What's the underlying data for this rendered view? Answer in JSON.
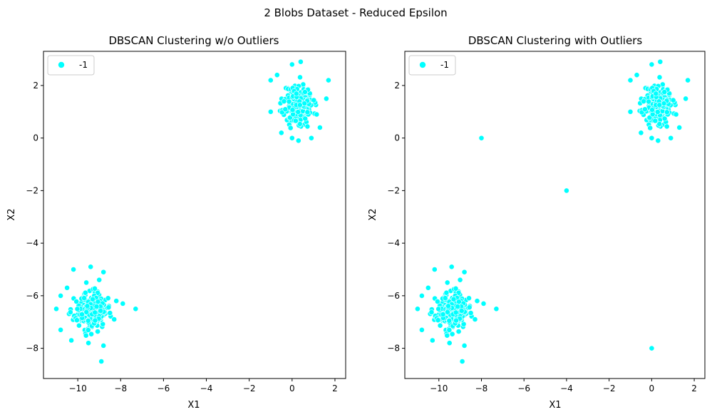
{
  "figure": {
    "suptitle": "2 Blobs Dataset - Reduced Epsilon"
  },
  "chart_data": [
    {
      "type": "scatter",
      "title": "DBSCAN Clustering w/o Outliers",
      "xlabel": "X1",
      "ylabel": "X2",
      "xlim": [
        -11.6,
        2.5
      ],
      "ylim": [
        -9.15,
        3.3
      ],
      "xticks": [
        -10,
        -8,
        -6,
        -4,
        -2,
        0,
        2
      ],
      "yticks": [
        2,
        0,
        -2,
        -4,
        -6,
        -8
      ],
      "xtick_labels": [
        "−10",
        "−8",
        "−6",
        "−4",
        "−2",
        "0",
        "2"
      ],
      "ytick_labels": [
        "2",
        "0",
        "−2",
        "−4",
        "−6",
        "−8"
      ],
      "grid": false,
      "legend": {
        "placement": "top-left",
        "entries": [
          {
            "label": "-1",
            "color": "#00ffff"
          }
        ]
      },
      "series": [
        {
          "name": "-1",
          "color": "#00ffff",
          "clusters": [
            {
              "center": [
                0.3,
                1.3
              ],
              "spread": [
                0.55,
                0.6
              ],
              "count": 260,
              "seed": 11
            },
            {
              "center": [
                -9.4,
                -6.6
              ],
              "spread": [
                0.6,
                0.55
              ],
              "count": 230,
              "seed": 23
            }
          ],
          "points": [
            [
              0.4,
              2.9
            ],
            [
              0.0,
              2.8
            ],
            [
              -0.7,
              2.4
            ],
            [
              -1.0,
              2.2
            ],
            [
              1.7,
              2.2
            ],
            [
              1.6,
              1.5
            ],
            [
              -1.0,
              1.0
            ],
            [
              0.3,
              -0.1
            ],
            [
              0.0,
              0.0
            ],
            [
              -0.5,
              0.2
            ],
            [
              1.3,
              0.4
            ],
            [
              0.9,
              0.0
            ],
            [
              -9.4,
              -4.9
            ],
            [
              -10.2,
              -5.0
            ],
            [
              -8.8,
              -5.1
            ],
            [
              -9.0,
              -5.4
            ],
            [
              -7.3,
              -6.5
            ],
            [
              -7.9,
              -6.3
            ],
            [
              -8.2,
              -6.2
            ],
            [
              -11.0,
              -6.5
            ],
            [
              -10.8,
              -6.0
            ],
            [
              -10.8,
              -7.3
            ],
            [
              -10.3,
              -7.7
            ],
            [
              -9.5,
              -7.8
            ],
            [
              -8.8,
              -7.9
            ],
            [
              -8.3,
              -6.9
            ],
            [
              -8.9,
              -8.5
            ],
            [
              -9.6,
              -5.5
            ],
            [
              -10.5,
              -5.7
            ]
          ]
        }
      ]
    },
    {
      "type": "scatter",
      "title": "DBSCAN Clustering with Outliers",
      "xlabel": "X1",
      "ylabel": "X2",
      "xlim": [
        -11.6,
        2.5
      ],
      "ylim": [
        -9.15,
        3.3
      ],
      "xticks": [
        -10,
        -8,
        -6,
        -4,
        -2,
        0,
        2
      ],
      "yticks": [
        2,
        0,
        -2,
        -4,
        -6,
        -8
      ],
      "xtick_labels": [
        "−10",
        "−8",
        "−6",
        "−4",
        "−2",
        "0",
        "2"
      ],
      "ytick_labels": [
        "2",
        "0",
        "−2",
        "−4",
        "−6",
        "−8"
      ],
      "grid": false,
      "legend": {
        "placement": "top-left",
        "entries": [
          {
            "label": "-1",
            "color": "#00ffff"
          }
        ]
      },
      "series": [
        {
          "name": "-1",
          "color": "#00ffff",
          "clusters": [
            {
              "center": [
                0.3,
                1.3
              ],
              "spread": [
                0.55,
                0.6
              ],
              "count": 260,
              "seed": 11
            },
            {
              "center": [
                -9.4,
                -6.6
              ],
              "spread": [
                0.6,
                0.55
              ],
              "count": 230,
              "seed": 23
            }
          ],
          "points": [
            [
              0.4,
              2.9
            ],
            [
              0.0,
              2.8
            ],
            [
              -0.7,
              2.4
            ],
            [
              -1.0,
              2.2
            ],
            [
              1.7,
              2.2
            ],
            [
              1.6,
              1.5
            ],
            [
              -1.0,
              1.0
            ],
            [
              0.3,
              -0.1
            ],
            [
              0.0,
              0.0
            ],
            [
              -0.5,
              0.2
            ],
            [
              1.3,
              0.4
            ],
            [
              0.9,
              0.0
            ],
            [
              -9.4,
              -4.9
            ],
            [
              -10.2,
              -5.0
            ],
            [
              -8.8,
              -5.1
            ],
            [
              -9.0,
              -5.4
            ],
            [
              -7.3,
              -6.5
            ],
            [
              -7.9,
              -6.3
            ],
            [
              -8.2,
              -6.2
            ],
            [
              -11.0,
              -6.5
            ],
            [
              -10.8,
              -6.0
            ],
            [
              -10.8,
              -7.3
            ],
            [
              -10.3,
              -7.7
            ],
            [
              -9.5,
              -7.8
            ],
            [
              -8.8,
              -7.9
            ],
            [
              -8.3,
              -6.9
            ],
            [
              -8.9,
              -8.5
            ],
            [
              -9.6,
              -5.5
            ],
            [
              -10.5,
              -5.7
            ],
            [
              -8.0,
              0.0
            ],
            [
              -4.0,
              -2.0
            ],
            [
              0.0,
              -8.0
            ]
          ]
        }
      ]
    }
  ]
}
